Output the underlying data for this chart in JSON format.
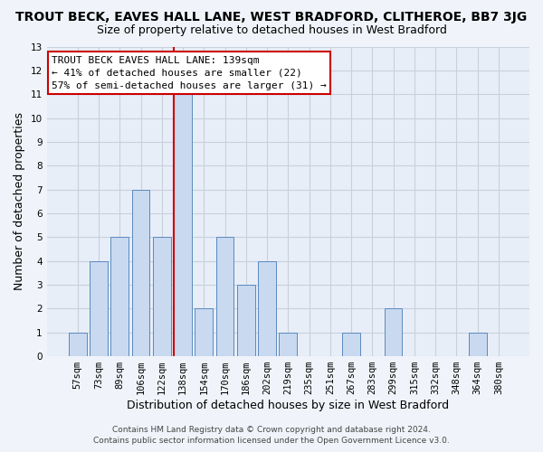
{
  "title": "TROUT BECK, EAVES HALL LANE, WEST BRADFORD, CLITHEROE, BB7 3JG",
  "subtitle": "Size of property relative to detached houses in West Bradford",
  "xlabel": "Distribution of detached houses by size in West Bradford",
  "ylabel": "Number of detached properties",
  "bin_labels": [
    "57sqm",
    "73sqm",
    "89sqm",
    "106sqm",
    "122sqm",
    "138sqm",
    "154sqm",
    "170sqm",
    "186sqm",
    "202sqm",
    "219sqm",
    "235sqm",
    "251sqm",
    "267sqm",
    "283sqm",
    "299sqm",
    "315sqm",
    "332sqm",
    "348sqm",
    "364sqm",
    "380sqm"
  ],
  "bar_heights": [
    1,
    4,
    5,
    7,
    5,
    11,
    2,
    5,
    3,
    4,
    1,
    0,
    0,
    1,
    0,
    2,
    0,
    0,
    0,
    1,
    0
  ],
  "bar_color": "#c8d9f0",
  "bar_edge_color": "#5a8abf",
  "highlight_index": 5,
  "highlight_line_color": "#cc0000",
  "ylim": [
    0,
    13
  ],
  "yticks": [
    0,
    1,
    2,
    3,
    4,
    5,
    6,
    7,
    8,
    9,
    10,
    11,
    12,
    13
  ],
  "annotation_title": "TROUT BECK EAVES HALL LANE: 139sqm",
  "annotation_line1": "← 41% of detached houses are smaller (22)",
  "annotation_line2": "57% of semi-detached houses are larger (31) →",
  "footer1": "Contains HM Land Registry data © Crown copyright and database right 2024.",
  "footer2": "Contains public sector information licensed under the Open Government Licence v3.0.",
  "bg_color": "#f0f4fa",
  "plot_bg_color": "#e8eef8",
  "grid_color": "#c8d0dc",
  "bar_color_highlight": "#aabbdd",
  "title_fontsize": 10,
  "subtitle_fontsize": 9,
  "axis_label_fontsize": 9,
  "tick_fontsize": 7.5,
  "ann_fontsize": 8.0,
  "footer_fontsize": 6.5
}
